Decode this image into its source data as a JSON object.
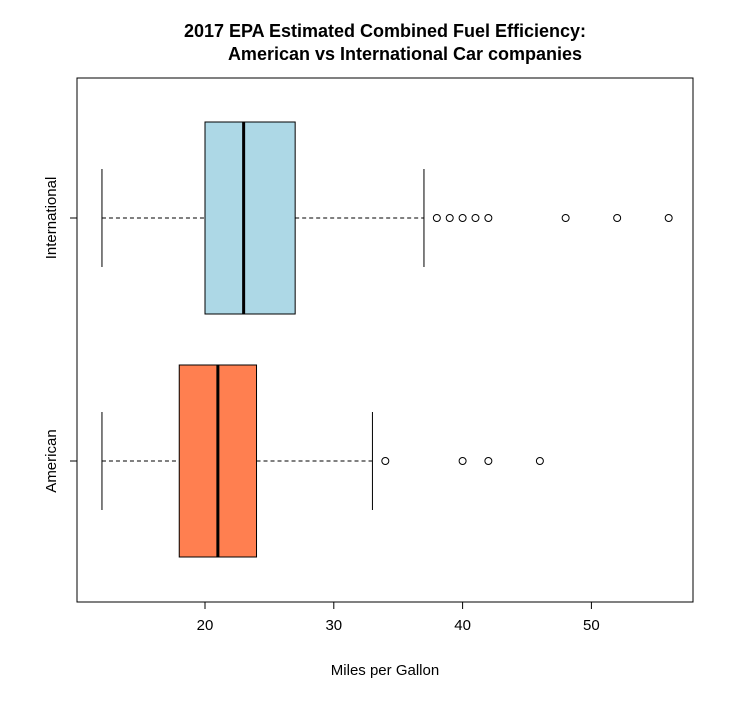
{
  "chart_data": {
    "type": "boxplot",
    "orientation": "horizontal",
    "title_line1": "2017 EPA Estimated Combined Fuel Efficiency:",
    "title_line2": "American vs International Car companies",
    "xlabel": "Miles per Gallon",
    "ylabel": "",
    "xlim": [
      10.2,
      58
    ],
    "x_ticks": [
      20,
      30,
      40,
      50
    ],
    "x_tick_labels": [
      "20",
      "30",
      "40",
      "50"
    ],
    "grid": false,
    "legend": "none",
    "series": [
      {
        "name": "American",
        "color": "#ff7f50",
        "whisker_low": 12,
        "q1": 18,
        "median": 21,
        "q3": 24,
        "whisker_high": 33,
        "outliers": [
          34,
          40,
          42,
          46
        ]
      },
      {
        "name": "International",
        "color": "#add8e6",
        "whisker_low": 12,
        "q1": 20,
        "median": 23,
        "q3": 27,
        "whisker_high": 37,
        "outliers": [
          38,
          39,
          40,
          41,
          42,
          48,
          52,
          56
        ]
      }
    ]
  }
}
